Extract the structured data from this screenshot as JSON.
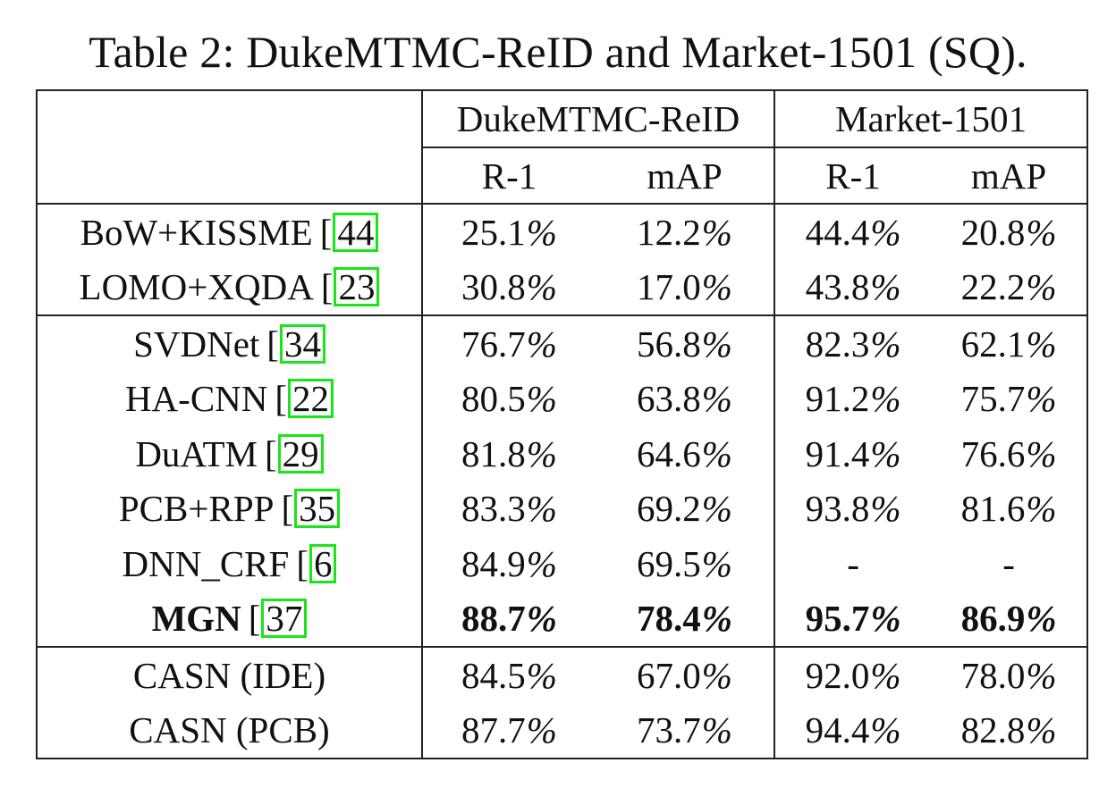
{
  "caption": "Table 2: DukeMTMC-ReID and Market-1501 (SQ).",
  "header": {
    "datasets": [
      "DukeMTMC-ReID",
      "Market-1501"
    ],
    "metrics": [
      "R-1",
      "mAP",
      "R-1",
      "mAP"
    ]
  },
  "groups": [
    {
      "rows": [
        {
          "method": "BoW+KISSME",
          "ref": "44",
          "values": [
            "25.1",
            "12.2",
            "44.4",
            "20.8"
          ],
          "bold": false
        },
        {
          "method": "LOMO+XQDA",
          "ref": "23",
          "values": [
            "30.8",
            "17.0",
            "43.8",
            "22.2"
          ],
          "bold": false
        }
      ]
    },
    {
      "rows": [
        {
          "method": "SVDNet",
          "ref": "34",
          "values": [
            "76.7",
            "56.8",
            "82.3",
            "62.1"
          ],
          "bold": false
        },
        {
          "method": "HA-CNN",
          "ref": "22",
          "values": [
            "80.5",
            "63.8",
            "91.2",
            "75.7"
          ],
          "bold": false
        },
        {
          "method": "DuATM",
          "ref": "29",
          "values": [
            "81.8",
            "64.6",
            "91.4",
            "76.6"
          ],
          "bold": false
        },
        {
          "method": "PCB+RPP",
          "ref": "35",
          "values": [
            "83.3",
            "69.2",
            "93.8",
            "81.6"
          ],
          "bold": false
        },
        {
          "method": "DNN_CRF",
          "ref": "6",
          "values": [
            "84.9",
            "69.5",
            "-",
            "-"
          ],
          "bold": false
        },
        {
          "method": "MGN",
          "ref": "37",
          "values": [
            "88.7",
            "78.4",
            "95.7",
            "86.9"
          ],
          "bold": true
        }
      ]
    },
    {
      "rows": [
        {
          "method": "CASN (IDE)",
          "ref": "",
          "values": [
            "84.5",
            "67.0",
            "92.0",
            "78.0"
          ],
          "bold": false
        },
        {
          "method": "CASN (PCB)",
          "ref": "",
          "values": [
            "87.7",
            "73.7",
            "94.4",
            "82.8"
          ],
          "bold": false
        }
      ]
    }
  ],
  "colors": {
    "ref_box_border": "#19e619",
    "rule": "#222222",
    "text": "#111111"
  }
}
